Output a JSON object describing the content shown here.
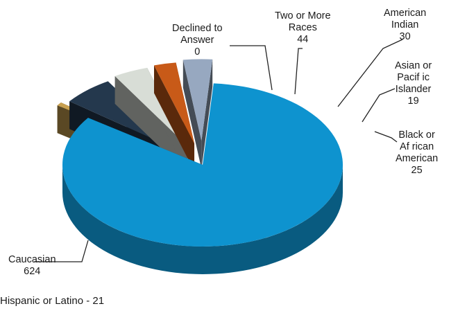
{
  "chart_data": {
    "type": "pie",
    "style": "3d-exploded",
    "slices": [
      {
        "label_lines": [
          "Caucasian"
        ],
        "value": 624,
        "value_text": "624",
        "color": "#0e93cf"
      },
      {
        "label_lines": [
          "Declined to",
          "Answer"
        ],
        "value": 0,
        "value_text": "0",
        "color": "#c8a050"
      },
      {
        "label_lines": [
          "Two or More",
          "Races"
        ],
        "value": 44,
        "value_text": "44",
        "color": "#24384d"
      },
      {
        "label_lines": [
          "American",
          "Indian"
        ],
        "value": 30,
        "value_text": "30",
        "color": "#d8ddd6"
      },
      {
        "label_lines": [
          "Asian or",
          "Pacif ic",
          "Islander"
        ],
        "value": 19,
        "value_text": "19",
        "color": "#c85a18"
      },
      {
        "label_lines": [
          "Black or",
          "Af rican",
          "American"
        ],
        "value": 25,
        "value_text": "25",
        "color": "#97a8c0"
      }
    ]
  },
  "footnote": "Hispanic or Latino - 21"
}
